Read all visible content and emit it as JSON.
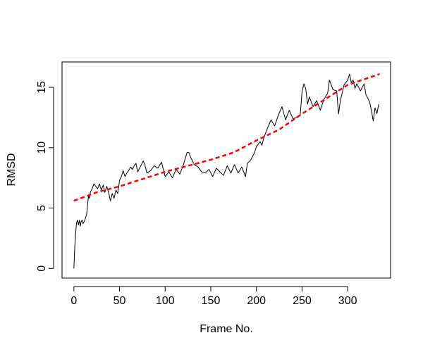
{
  "chart_data": {
    "type": "line",
    "title": "",
    "xlabel": "Frame No.",
    "ylabel": "RMSD",
    "xlim": [
      -13,
      347
    ],
    "ylim": [
      -0.8,
      17.1
    ],
    "xticks": [
      "0",
      "50",
      "100",
      "150",
      "200",
      "250",
      "300"
    ],
    "yticks": [
      "0",
      "5",
      "10",
      "15"
    ],
    "grid": false,
    "legend": "none",
    "series": [
      {
        "style": "solid",
        "color": "#000000",
        "x": [
          0,
          1,
          2,
          3,
          4,
          5,
          6,
          7,
          8,
          9,
          10,
          12,
          14,
          16,
          17,
          18,
          20,
          22,
          24,
          26,
          28,
          30,
          32,
          34,
          36,
          38,
          40,
          42,
          44,
          46,
          48,
          50,
          52,
          54,
          56,
          58,
          60,
          62,
          64,
          66,
          68,
          70,
          72,
          74,
          76,
          78,
          80,
          84,
          88,
          92,
          96,
          100,
          104,
          108,
          112,
          116,
          120,
          124,
          126,
          128,
          132,
          136,
          140,
          144,
          148,
          152,
          156,
          160,
          164,
          168,
          172,
          176,
          180,
          184,
          188,
          190,
          194,
          198,
          200,
          204,
          206,
          208,
          212,
          216,
          220,
          224,
          228,
          232,
          236,
          240,
          244,
          248,
          250,
          252,
          254,
          256,
          258,
          262,
          266,
          270,
          274,
          278,
          280,
          284,
          288,
          290,
          292,
          296,
          300,
          302,
          304,
          306,
          308,
          310,
          314,
          318,
          320,
          324,
          326,
          328,
          330,
          332,
          334
        ],
        "y": [
          0,
          1.8,
          3.0,
          3.8,
          4.0,
          3.6,
          4.0,
          3.5,
          3.9,
          4.0,
          3.7,
          4.0,
          4.5,
          6.0,
          5.8,
          6.3,
          6.6,
          7.0,
          6.8,
          6.6,
          7.0,
          6.5,
          6.9,
          6.3,
          6.8,
          6.3,
          5.6,
          6.2,
          5.8,
          6.5,
          6.2,
          7.3,
          7.6,
          8.1,
          7.6,
          7.9,
          8.1,
          8.4,
          8.2,
          8.5,
          8.7,
          8.0,
          8.3,
          8.6,
          8.9,
          8.5,
          7.9,
          8.1,
          8.5,
          8.3,
          8.8,
          7.6,
          8.0,
          7.5,
          8.2,
          7.8,
          8.6,
          9.6,
          9.6,
          9.2,
          8.6,
          8.4,
          8.0,
          7.9,
          8.2,
          7.6,
          8.3,
          8.0,
          7.7,
          8.5,
          7.9,
          8.6,
          7.9,
          8.4,
          7.6,
          8.7,
          9.0,
          9.6,
          10.1,
          10.5,
          10.2,
          10.8,
          11.6,
          12.3,
          11.8,
          12.7,
          13.4,
          12.3,
          13.1,
          12.4,
          12.5,
          12.7,
          14.6,
          15.3,
          14.9,
          13.6,
          14.2,
          13.4,
          13.9,
          13.1,
          14.0,
          14.5,
          15.6,
          14.8,
          14.7,
          12.8,
          13.9,
          15.2,
          15.6,
          16.1,
          15.4,
          15.6,
          14.9,
          15.3,
          14.7,
          15.3,
          14.4,
          13.8,
          13.1,
          12.2,
          13.3,
          12.8,
          13.6
        ]
      },
      {
        "style": "dashed",
        "color": "#ff0000",
        "x": [
          0,
          25,
          50,
          75,
          100,
          125,
          150,
          175,
          200,
          225,
          250,
          275,
          300,
          335
        ],
        "y": [
          5.6,
          6.3,
          6.8,
          7.4,
          8.0,
          8.5,
          9.0,
          9.6,
          10.6,
          11.5,
          12.8,
          14.0,
          15.2,
          16.1
        ]
      }
    ]
  }
}
